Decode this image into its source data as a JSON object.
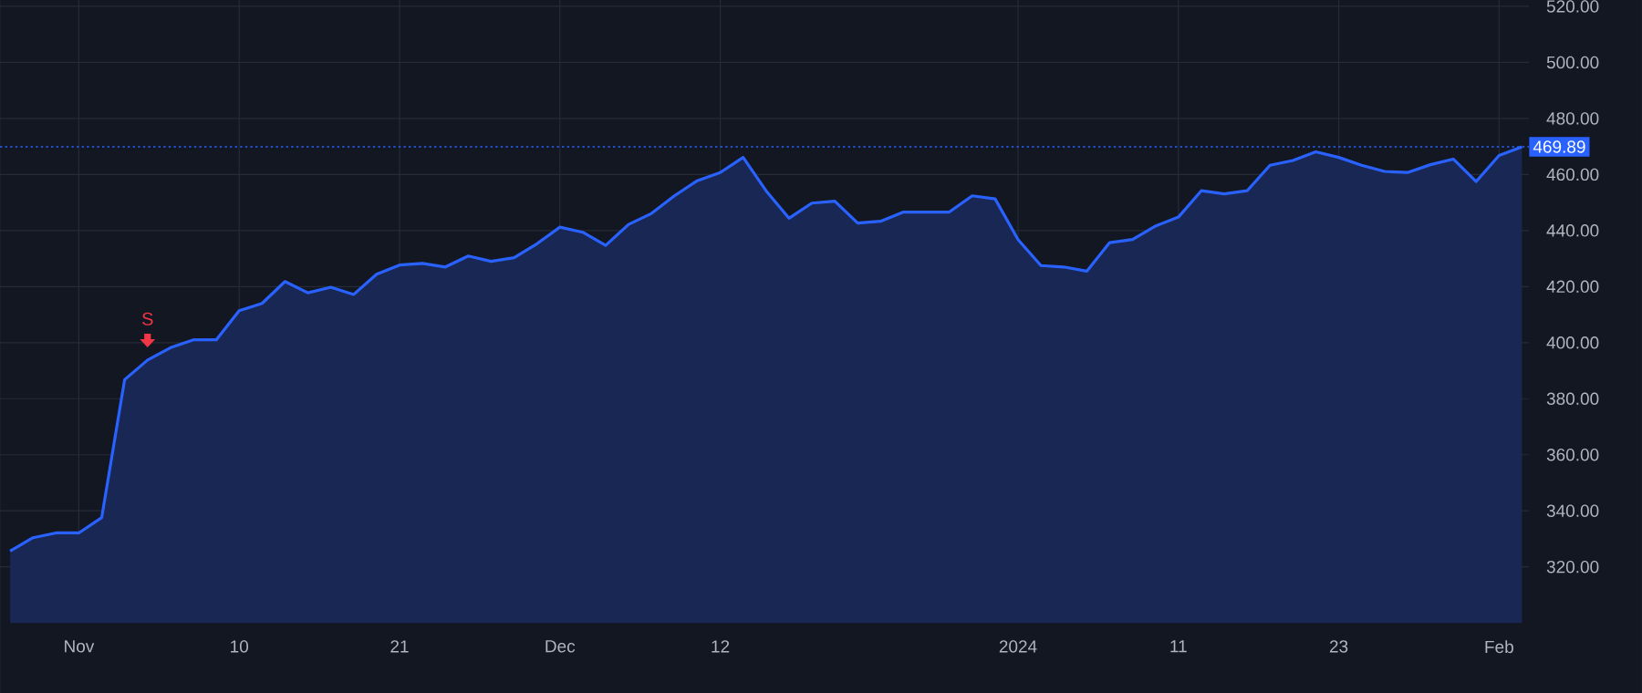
{
  "chart_data": {
    "type": "area",
    "categories": [
      null,
      null,
      null,
      "Nov",
      null,
      null,
      null,
      null,
      null,
      null,
      "10",
      null,
      null,
      null,
      null,
      null,
      null,
      "21",
      null,
      null,
      null,
      null,
      null,
      null,
      "Dec",
      null,
      null,
      null,
      null,
      null,
      null,
      "12",
      null,
      null,
      null,
      null,
      null,
      null,
      null,
      null,
      null,
      null,
      null,
      null,
      "2024",
      null,
      null,
      null,
      null,
      null,
      null,
      "11",
      null,
      null,
      null,
      null,
      null,
      null,
      "23",
      null,
      null,
      null,
      null,
      null,
      null,
      "Feb",
      null
    ],
    "series": [
      {
        "color": "#2962ff",
        "values": [
          325.6,
          330.4,
          332.1,
          332.1,
          337.6,
          386.8,
          393.8,
          398.2,
          401.0,
          401.0,
          411.4,
          414.0,
          421.8,
          417.8,
          419.8,
          417.2,
          424.4,
          427.7,
          428.3,
          427.0,
          430.9,
          429.0,
          430.3,
          435.3,
          441.2,
          439.4,
          434.7,
          442.2,
          446.1,
          452.4,
          457.8,
          460.7,
          466.1,
          454.2,
          444.4,
          449.8,
          450.5,
          442.7,
          443.3,
          446.6,
          446.6,
          446.6,
          452.4,
          451.3,
          436.8,
          427.5,
          427.0,
          425.5,
          435.7,
          436.8,
          441.6,
          444.8,
          454.2,
          453.1,
          454.2,
          463.3,
          465.0,
          468.1,
          466.1,
          463.3,
          461.1,
          460.7,
          463.5,
          465.5,
          457.5,
          466.8,
          469.89
        ]
      }
    ],
    "ylim": [
      300,
      531
    ],
    "yticks": [
      {
        "value": 320,
        "label": "320.00"
      },
      {
        "value": 340,
        "label": "340.00"
      },
      {
        "value": 360,
        "label": "360.00"
      },
      {
        "value": 380,
        "label": "380.00"
      },
      {
        "value": 400,
        "label": "400.00"
      },
      {
        "value": 420,
        "label": "420.00"
      },
      {
        "value": 440,
        "label": "440.00"
      },
      {
        "value": 460,
        "label": "460.00"
      },
      {
        "value": 480,
        "label": "480.00"
      },
      {
        "value": 500,
        "label": "500.00"
      },
      {
        "value": 520,
        "label": "520.00"
      }
    ],
    "ref_lines": [
      {
        "axis": "y",
        "value": 469.89,
        "label": "469.89",
        "color": "#2962ff",
        "line_style": "dotted"
      }
    ],
    "annotations": [
      "S"
    ],
    "grid": true
  }
}
